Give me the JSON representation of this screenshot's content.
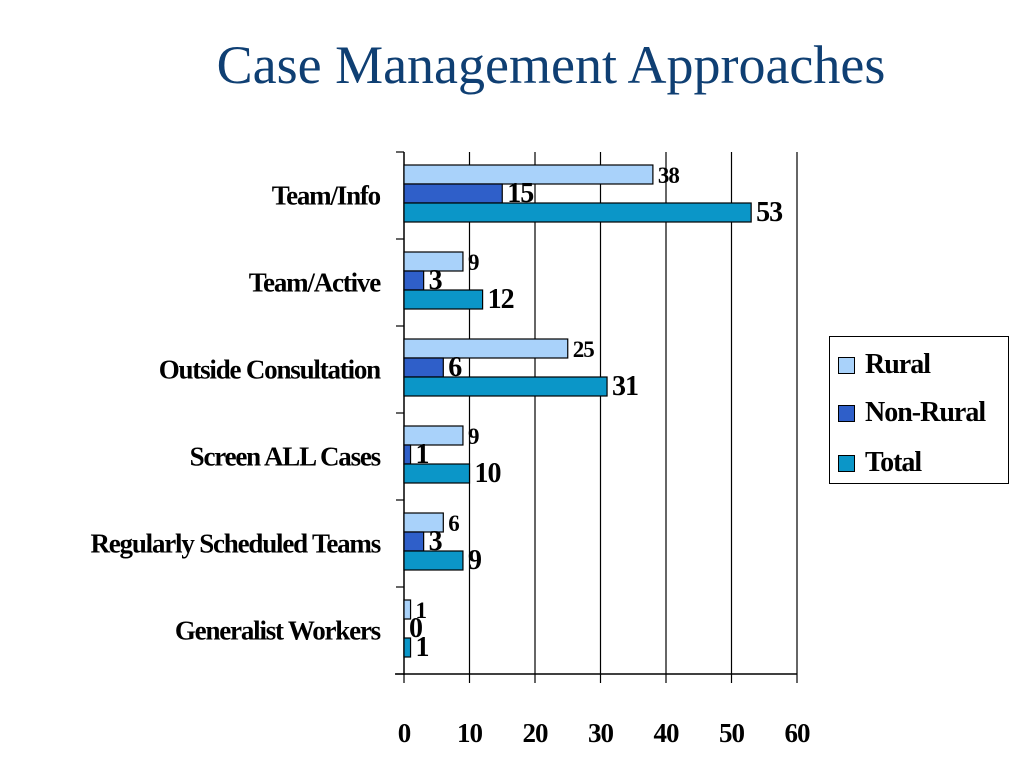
{
  "title": "Case Management Approaches",
  "colors": {
    "title": "#0f3f73",
    "rural": "#a9d2fa",
    "non_rural": "#2f5fc9",
    "total": "#0b96c8"
  },
  "chart_data": {
    "type": "bar",
    "orientation": "horizontal",
    "categories": [
      "Team/Info",
      "Team/Active",
      "Outside Consultation",
      "Screen ALL Cases",
      "Regularly Scheduled Teams",
      "Generalist Workers"
    ],
    "series": [
      {
        "name": "Rural",
        "values": [
          38,
          9,
          25,
          9,
          6,
          1
        ]
      },
      {
        "name": "Non-Rural",
        "values": [
          15,
          3,
          6,
          1,
          3,
          0
        ]
      },
      {
        "name": "Total",
        "values": [
          53,
          12,
          31,
          10,
          9,
          1
        ]
      }
    ],
    "xlim": [
      0,
      60
    ],
    "x_ticks": [
      "0",
      "10",
      "20",
      "30",
      "40",
      "50",
      "60"
    ],
    "grid": "vertical",
    "legend_position": "right",
    "data_labels": true
  },
  "legend": {
    "items": [
      "Rural",
      "Non-Rural",
      "Total"
    ]
  }
}
